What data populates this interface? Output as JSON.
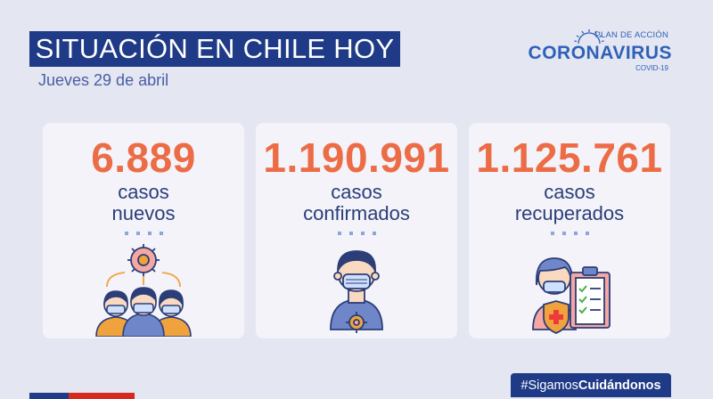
{
  "header": {
    "title": "SITUACIÓN EN CHILE HOY",
    "date": "Jueves 29 de abril"
  },
  "logo": {
    "line1": "PLAN DE ACCIÓN",
    "line2": "CORONAVIRUS",
    "line3": "COVID-19"
  },
  "cards": [
    {
      "value": "6.889",
      "label_line1": "casos",
      "label_line2": "nuevos",
      "icon": "group-virus-icon"
    },
    {
      "value": "1.190.991",
      "label_line1": "casos",
      "label_line2": "confirmados",
      "icon": "masked-person-icon"
    },
    {
      "value": "1.125.761",
      "label_line1": "casos",
      "label_line2": "recuperados",
      "icon": "recovered-clipboard-icon"
    }
  ],
  "footer": {
    "hashtag_prefix": "#Sigamos",
    "hashtag_bold": "Cuidándonos"
  },
  "colors": {
    "background": "#e4e6f2",
    "navy": "#1f3a86",
    "accent_orange": "#ec6c46",
    "label_text": "#2b3e78",
    "logo_blue": "#2f61b8",
    "flag_blue": "#1f3a86",
    "flag_red": "#d52b1e"
  }
}
